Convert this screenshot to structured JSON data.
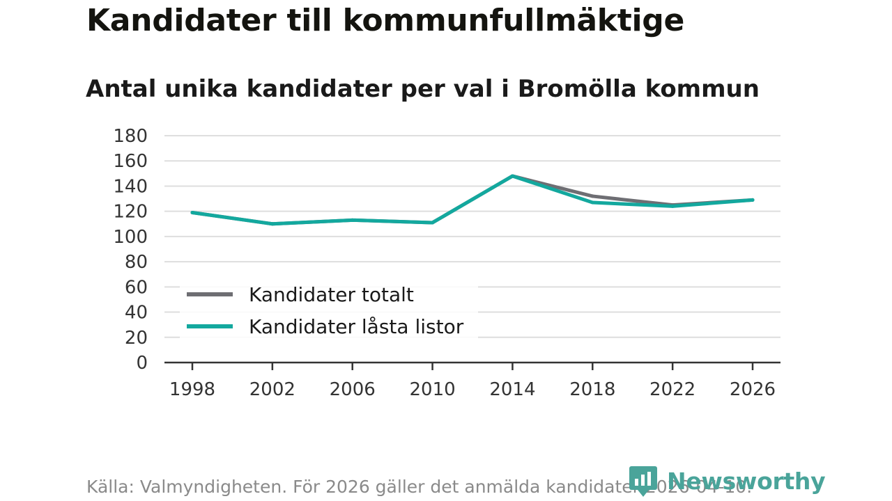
{
  "title": "Kandidater till kommunfullmäktige",
  "subtitle": "Antal unika kandidater per val i Bromölla kommun",
  "chart_data": {
    "type": "line",
    "title": "Kandidater till kommunfullmäktige",
    "subtitle": "Antal unika kandidater per val i Bromölla kommun",
    "xlabel": "",
    "ylabel": "",
    "categories": [
      "1998",
      "2002",
      "2006",
      "2010",
      "2014",
      "2018",
      "2022",
      "2026"
    ],
    "ylim": [
      0,
      180
    ],
    "yticks": [
      0,
      20,
      40,
      60,
      80,
      100,
      120,
      140,
      160,
      180
    ],
    "grid": true,
    "legend_position": "lower-left",
    "series": [
      {
        "name": "Kandidater totalt",
        "color": "#6e6e73",
        "values": [
          119,
          110,
          113,
          111,
          148,
          132,
          125,
          129
        ]
      },
      {
        "name": "Kandidater låsta listor",
        "color": "#13a89e",
        "values": [
          119,
          110,
          113,
          111,
          148,
          127,
          124,
          129
        ]
      }
    ]
  },
  "source": "Källa: Valmyndigheten. För 2026 gäller det anmälda kandidater 2026-04-10.",
  "brand": {
    "name": "Newsworthy",
    "icon": "newsworthy-logo-icon",
    "color": "#4aa49a"
  }
}
